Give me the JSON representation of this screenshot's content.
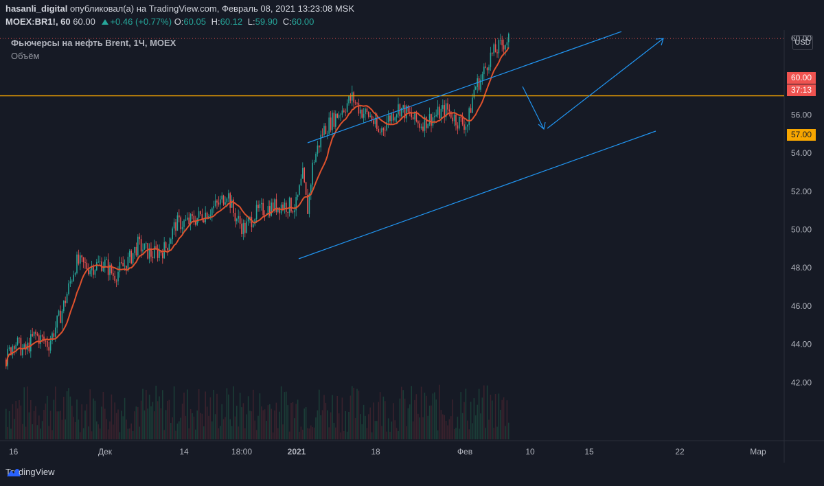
{
  "header": {
    "user": "hasanli_digital",
    "published_text": "опубликовал(а) на TradingView.com, Февраль 08, 2021 13:23:08 MSK",
    "symbol": "MOEX:BR1!, 60",
    "last": "60.00",
    "change": "+0.46 (+0.77%)",
    "o_label": "O:",
    "o_value": "60.05",
    "h_label": "H:",
    "h_value": "60.12",
    "l_label": "L:",
    "l_value": "59.90",
    "c_label": "C:",
    "c_value": "60.00"
  },
  "legend": {
    "title": "Фьючерсы на нефть Brent, 1Ч, MOEX",
    "volume": "Объём"
  },
  "currency_button": "USD",
  "price_tags": {
    "last": "60.00",
    "countdown": "37:13",
    "level": "57.00"
  },
  "footer": {
    "brand": "TradingView"
  },
  "colors": {
    "background": "#161a25",
    "up": "#26a69a",
    "down": "#ef5350",
    "ma": "#e0522d",
    "trend": "#2196f3",
    "level": "#f7a600"
  },
  "chart_data": {
    "type": "candlestick",
    "title": "Фьючерсы на нефть Brent, 1Ч, MOEX",
    "ylim": [
      41,
      63
    ],
    "y_ticks": [
      "42.00",
      "44.00",
      "46.00",
      "48.00",
      "50.00",
      "52.00",
      "54.00",
      "56.00",
      "58.00",
      "60.00"
    ],
    "x_ticks": [
      "16",
      "Дек",
      "14",
      "18:00",
      "2021",
      "18",
      "Фев",
      "10",
      "15",
      "22",
      "Мар"
    ],
    "price_line": 60.0,
    "horizontal_level": 57.0,
    "close_path": [
      [
        "16",
        43.3
      ],
      [
        "Дек",
        48.2
      ],
      [
        "14",
        50.5
      ],
      [
        "18:00",
        51.3
      ],
      [
        "2021",
        51.4
      ],
      [
        "18",
        56.0
      ],
      [
        "Фев",
        55.8
      ],
      [
        "10",
        60.0
      ]
    ],
    "annotations": [
      "ascending channel",
      "arrow down to 57.00",
      "arrow up"
    ]
  }
}
